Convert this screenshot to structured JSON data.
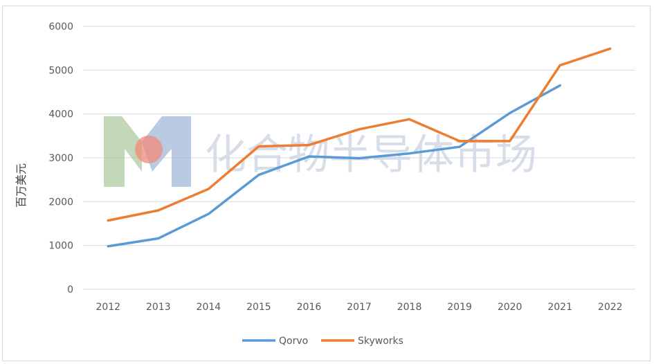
{
  "chart_data": {
    "type": "line",
    "title": "",
    "xlabel": "",
    "ylabel": "百万美元",
    "ylim": [
      0,
      6000
    ],
    "yticks": [
      0,
      1000,
      2000,
      3000,
      4000,
      5000,
      6000
    ],
    "categories": [
      "2012",
      "2013",
      "2014",
      "2015",
      "2016",
      "2017",
      "2018",
      "2019",
      "2020",
      "2021",
      "2022"
    ],
    "grid": "horizontal",
    "legend_position": "bottom",
    "series": [
      {
        "name": "Qorvo",
        "color": "#5b9bd5",
        "values": [
          980,
          1160,
          1720,
          2610,
          3030,
          2990,
          3100,
          3250,
          4020,
          4650,
          null
        ]
      },
      {
        "name": "Skyworks",
        "color": "#ed7d31",
        "values": [
          1570,
          1800,
          2290,
          3260,
          3290,
          3650,
          3880,
          3380,
          3380,
          5110,
          5490
        ]
      }
    ]
  },
  "watermark": {
    "text": "化合物半导体市场",
    "logo_letter": "M",
    "colors": {
      "green": "#a8c89a",
      "blue": "#9db3d6",
      "red": "#ef8a7a"
    }
  }
}
